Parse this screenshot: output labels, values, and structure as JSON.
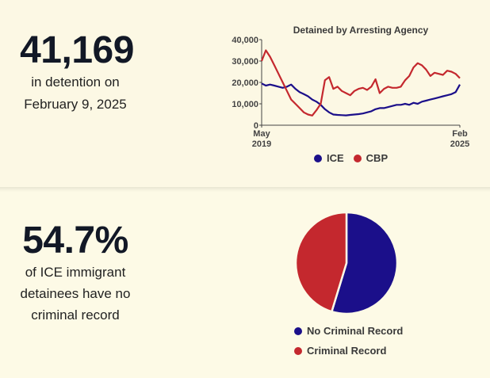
{
  "stats": {
    "detention_count": "41,169",
    "detention_line1": "in detention on",
    "detention_line2": "February 9, 2025",
    "no_record_pct": "54.7%",
    "no_record_line1": "of ICE immigrant",
    "no_record_line2": "detainees have no",
    "no_record_line3": "criminal record"
  },
  "colors": {
    "ice": "#1b0f8a",
    "cbp": "#c4282e",
    "background": "#fdfae6"
  },
  "chart_data": [
    {
      "type": "line",
      "title": "Detained by Arresting Agency",
      "xlabel": "",
      "ylabel": "",
      "x_ticks": [
        {
          "line1": "May",
          "line2": "2019"
        },
        {
          "line1": "Feb",
          "line2": "2025"
        }
      ],
      "y_ticks": [
        "0",
        "10,000",
        "20,000",
        "30,000",
        "40,000"
      ],
      "ylim": [
        0,
        40000
      ],
      "x_start": "2019-05",
      "x_end": "2025-02",
      "grid": false,
      "legend_position": "bottom",
      "series": [
        {
          "name": "ICE",
          "values": [
            19500,
            18500,
            19000,
            18500,
            18000,
            17500,
            18000,
            19000,
            17000,
            15500,
            14500,
            13500,
            12000,
            11000,
            9500,
            7500,
            6000,
            5000,
            4800,
            4700,
            4600,
            4800,
            5000,
            5200,
            5500,
            6000,
            6500,
            7500,
            8000,
            8000,
            8500,
            9000,
            9500,
            9500,
            10000,
            9500,
            10500,
            10000,
            11000,
            11500,
            12000,
            12500,
            13000,
            13500,
            14000,
            14500,
            15500,
            19000
          ]
        },
        {
          "name": "CBP",
          "values": [
            30000,
            35000,
            32000,
            28000,
            24000,
            20000,
            16000,
            12000,
            10000,
            8000,
            6000,
            5000,
            4500,
            7000,
            10000,
            21000,
            22500,
            17000,
            18000,
            16000,
            15000,
            14000,
            16000,
            17000,
            17500,
            16500,
            18000,
            21500,
            15000,
            17000,
            18000,
            17500,
            17500,
            18000,
            21000,
            23000,
            27000,
            29000,
            28000,
            26000,
            23000,
            24500,
            24000,
            23500,
            25500,
            25000,
            24000,
            22000
          ]
        }
      ]
    },
    {
      "type": "pie",
      "title": "",
      "categories": [
        "No Criminal Record",
        "Criminal Record"
      ],
      "values": [
        54.7,
        45.3
      ],
      "legend_position": "bottom"
    }
  ]
}
